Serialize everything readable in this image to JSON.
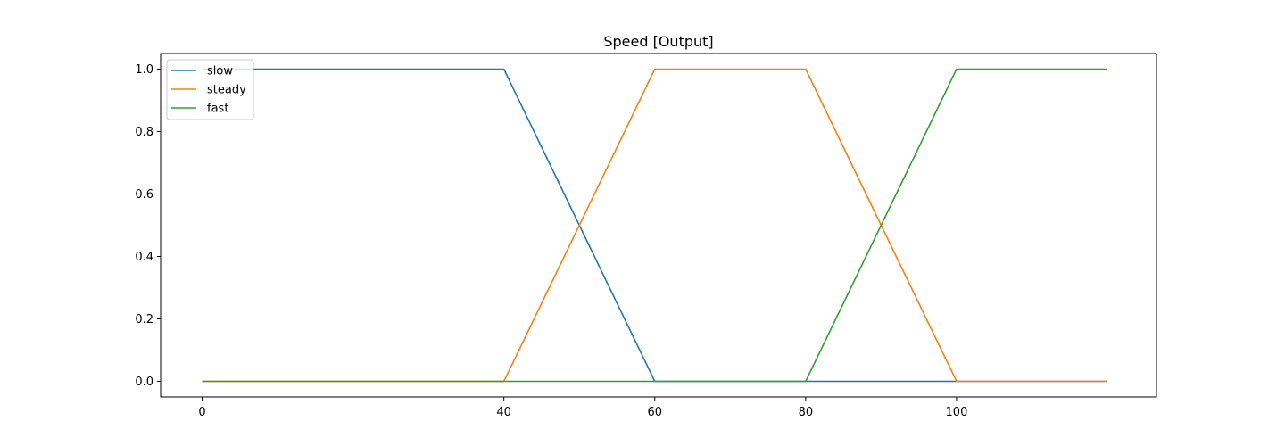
{
  "chart_data": {
    "type": "line",
    "title": "Speed [Output]",
    "xlabel": "",
    "ylabel": "",
    "xlim": [
      -5.5,
      126.5
    ],
    "ylim": [
      -0.05,
      1.05
    ],
    "x_ticks": [
      0,
      40,
      60,
      80,
      100
    ],
    "x_tick_labels": [
      "0",
      "40",
      "60",
      "80",
      "100"
    ],
    "y_ticks": [
      0.0,
      0.2,
      0.4,
      0.6,
      0.8,
      1.0
    ],
    "y_tick_labels": [
      "0.0",
      "0.2",
      "0.4",
      "0.6",
      "0.8",
      "1.0"
    ],
    "grid": false,
    "legend_position": "top-left",
    "series": [
      {
        "name": "slow",
        "color": "#1f77b4",
        "x": [
          0,
          40,
          60,
          120
        ],
        "y": [
          1,
          1,
          0,
          0
        ]
      },
      {
        "name": "steady",
        "color": "#ff7f0e",
        "x": [
          0,
          40,
          60,
          80,
          100,
          120
        ],
        "y": [
          0,
          0,
          1,
          1,
          0,
          0
        ]
      },
      {
        "name": "fast",
        "color": "#2ca02c",
        "x": [
          0,
          80,
          100,
          120
        ],
        "y": [
          0,
          0,
          1,
          1
        ]
      }
    ]
  }
}
